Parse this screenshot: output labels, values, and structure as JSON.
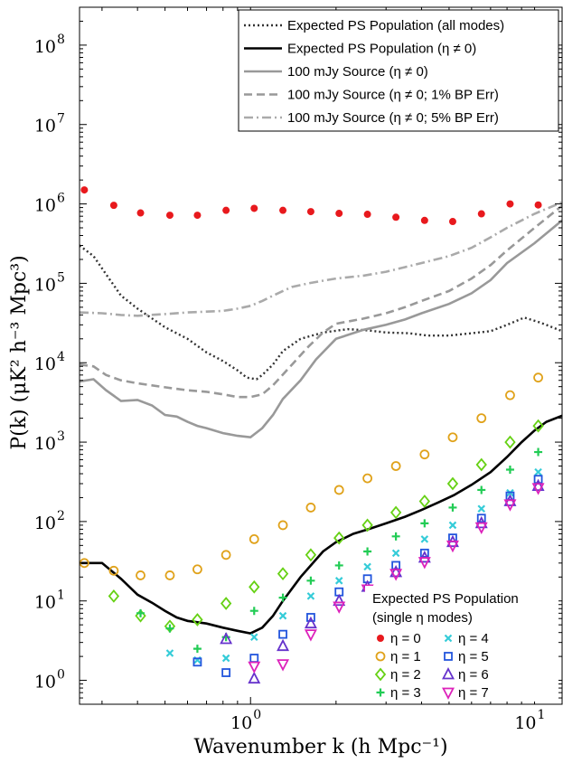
{
  "chart_data": {
    "type": "scatter",
    "title": "",
    "xlabel": "Wavenumber k (h Mpc⁻¹)",
    "ylabel": "P(k) (μK² h⁻³ Mpc³)",
    "x_scale": "log",
    "y_scale": "log",
    "xlim": [
      0.25,
      12.5
    ],
    "ylim": [
      0.5,
      300000000
    ],
    "x_ticks": [
      {
        "value": 1,
        "label": "10",
        "exp": "0"
      },
      {
        "value": 10,
        "label": "10",
        "exp": "1"
      }
    ],
    "y_ticks": [
      {
        "value": 1,
        "label": "10",
        "exp": "0"
      },
      {
        "value": 10,
        "label": "10",
        "exp": "1"
      },
      {
        "value": 100,
        "label": "10",
        "exp": "2"
      },
      {
        "value": 1000,
        "label": "10",
        "exp": "3"
      },
      {
        "value": 10000,
        "label": "10",
        "exp": "4"
      },
      {
        "value": 100000,
        "label": "10",
        "exp": "5"
      },
      {
        "value": 1000000,
        "label": "10",
        "exp": "6"
      },
      {
        "value": 10000000,
        "label": "10",
        "exp": "7"
      },
      {
        "value": 100000000,
        "label": "10",
        "exp": "8"
      }
    ],
    "lines": [
      {
        "name": "Expected PS Population (all modes)",
        "style": "dotted",
        "color": "#333333",
        "x": [
          0.25,
          0.28,
          0.31,
          0.35,
          0.4,
          0.5,
          0.6,
          0.7,
          0.8,
          0.9,
          0.97,
          1.05,
          1.1,
          1.2,
          1.3,
          1.5,
          1.8,
          2.2,
          2.6,
          3.0,
          3.6,
          4.2,
          5.0,
          6.0,
          7.0,
          8.0,
          9.2,
          10.5,
          12.5
        ],
        "y": [
          300000,
          220000,
          130000,
          70000,
          48000,
          28000,
          20000,
          13500,
          10500,
          8000,
          6500,
          6200,
          7000,
          9500,
          14000,
          20000,
          24000,
          26500,
          25500,
          24000,
          23500,
          22000,
          22000,
          23500,
          25000,
          30000,
          37000,
          32000,
          25000
        ]
      },
      {
        "name": "Expected PS Population (η ≠ 0)",
        "style": "solid",
        "color": "#000000",
        "x": [
          0.25,
          0.3,
          0.35,
          0.4,
          0.45,
          0.5,
          0.55,
          0.6,
          0.7,
          0.8,
          0.9,
          1.0,
          1.1,
          1.2,
          1.3,
          1.5,
          1.8,
          2.0,
          2.3,
          2.6,
          3.0,
          3.5,
          4.0,
          4.6,
          5.2,
          6.0,
          7.0,
          8.0,
          9.0,
          10.0,
          11.0,
          12.5
        ],
        "y": [
          30,
          30,
          19,
          12,
          9.5,
          7.5,
          6.2,
          5.6,
          5.2,
          4.6,
          4.2,
          3.9,
          4.6,
          6.5,
          10,
          20,
          42,
          55,
          70,
          80,
          95,
          115,
          140,
          175,
          215,
          290,
          420,
          650,
          1000,
          1400,
          1800,
          2150
        ]
      },
      {
        "name": "100 mJy Source (η ≠ 0)",
        "style": "solid",
        "color": "#999999",
        "x": [
          0.25,
          0.28,
          0.31,
          0.35,
          0.4,
          0.45,
          0.5,
          0.55,
          0.6,
          0.65,
          0.7,
          0.8,
          0.9,
          1.0,
          1.1,
          1.2,
          1.3,
          1.5,
          1.7,
          2.0,
          2.5,
          3.0,
          3.5,
          4.0,
          5.0,
          6.0,
          7.0,
          8.0,
          10.0,
          12.5
        ],
        "y": [
          5800,
          6200,
          4500,
          3300,
          3400,
          2900,
          2200,
          2100,
          1800,
          1600,
          1500,
          1300,
          1200,
          1150,
          1500,
          2200,
          3500,
          6000,
          11000,
          20000,
          26000,
          30000,
          35000,
          42000,
          55000,
          75000,
          110000,
          180000,
          320000,
          620000
        ]
      },
      {
        "name": "100 mJy Source (η ≠ 0; 1% BP Err)",
        "style": "dashed",
        "color": "#999999",
        "x": [
          0.25,
          0.28,
          0.31,
          0.35,
          0.4,
          0.5,
          0.6,
          0.7,
          0.8,
          0.9,
          1.0,
          1.1,
          1.2,
          1.4,
          1.6,
          1.8,
          2.0,
          2.5,
          3.0,
          3.5,
          4.0,
          5.0,
          6.0,
          7.0,
          8.0,
          10.0,
          12.5
        ],
        "y": [
          9500,
          9000,
          7000,
          6000,
          5500,
          4900,
          4500,
          4300,
          4000,
          3700,
          3700,
          4000,
          5200,
          9500,
          16000,
          24000,
          31000,
          36000,
          42000,
          50000,
          60000,
          80000,
          115000,
          170000,
          260000,
          500000,
          950000
        ]
      },
      {
        "name": "100 mJy Source (η ≠ 0; 5% BP Err)",
        "style": "dashdot",
        "color": "#aaaaaa",
        "x": [
          0.25,
          0.3,
          0.35,
          0.4,
          0.5,
          0.6,
          0.7,
          0.8,
          0.9,
          1.0,
          1.1,
          1.2,
          1.3,
          1.4,
          1.6,
          1.8,
          2.0,
          2.5,
          3.0,
          3.5,
          4.0,
          5.0,
          6.0,
          7.0,
          8.0,
          10.0,
          12.5
        ],
        "y": [
          43000,
          42000,
          40000,
          39000,
          41000,
          43000,
          44000,
          45000,
          48000,
          52000,
          60000,
          70000,
          80000,
          90000,
          100000,
          108000,
          115000,
          125000,
          140000,
          160000,
          180000,
          220000,
          280000,
          380000,
          500000,
          750000,
          1050000
        ]
      }
    ],
    "x_points": [
      0.26,
      0.33,
      0.41,
      0.52,
      0.65,
      0.82,
      1.03,
      1.3,
      1.63,
      2.05,
      2.58,
      3.25,
      4.1,
      5.15,
      6.5,
      8.2,
      10.3
    ],
    "series": [
      {
        "name": "η = 0",
        "marker": "dot",
        "color": "#e8191d",
        "values": [
          1500000,
          960000,
          770000,
          720000,
          720000,
          830000,
          880000,
          830000,
          800000,
          760000,
          740000,
          680000,
          620000,
          600000,
          750000,
          1000000,
          970000
        ]
      },
      {
        "name": "η = 1",
        "marker": "circle",
        "color": "#e0a21a",
        "values": [
          30,
          24,
          21,
          21,
          25,
          38,
          60,
          90,
          150,
          250,
          350,
          500,
          700,
          1150,
          2000,
          3900,
          6500
        ]
      },
      {
        "name": "η = 2",
        "marker": "diamond",
        "color": "#66d114",
        "values": [
          null,
          11.5,
          6.5,
          4.8,
          5.8,
          9.3,
          15,
          22,
          38,
          62,
          90,
          130,
          180,
          300,
          520,
          1000,
          1600
        ]
      },
      {
        "name": "η = 3",
        "marker": "plus",
        "color": "#22cc55",
        "values": [
          null,
          null,
          7,
          4.5,
          2.5,
          3.5,
          7.5,
          11,
          18,
          28,
          42,
          65,
          95,
          150,
          250,
          450,
          750
        ]
      },
      {
        "name": "η = 4",
        "marker": "x",
        "color": "#35ccd8",
        "values": [
          null,
          null,
          null,
          2.2,
          1.8,
          1.9,
          3.5,
          6.5,
          11.5,
          18,
          27,
          40,
          60,
          90,
          145,
          230,
          420
        ]
      },
      {
        "name": "η = 5",
        "marker": "square",
        "color": "#2255dd",
        "values": [
          null,
          null,
          null,
          null,
          1.7,
          1.25,
          1.9,
          3.8,
          6.2,
          13,
          19,
          28,
          40,
          62,
          110,
          210,
          340
        ]
      },
      {
        "name": "η = 6",
        "marker": "triangle",
        "color": "#6633cc",
        "values": [
          null,
          null,
          null,
          null,
          null,
          3.3,
          1.05,
          2.7,
          5.2,
          10,
          15,
          23,
          35,
          55,
          95,
          180,
          280
        ]
      },
      {
        "name": "η = 7",
        "marker": "triangledown",
        "color": "#dd22bb",
        "values": [
          null,
          null,
          null,
          null,
          null,
          null,
          1.5,
          1.6,
          3.8,
          8.5,
          14,
          22,
          31,
          50,
          85,
          165,
          265
        ]
      }
    ],
    "legend_lines_title": "",
    "legend_points_title_1": "Expected PS Population",
    "legend_points_title_2": "(single η modes)",
    "grid": false,
    "legend_placement": "top-right and bottom-right"
  }
}
